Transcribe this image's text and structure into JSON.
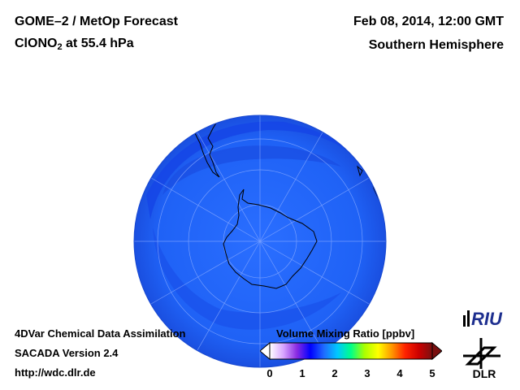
{
  "header": {
    "product": "GOME–2 / MetOp Forecast",
    "species_prefix": "ClONO",
    "species_sub": "2",
    "species_suffix": " at 55.4 hPa",
    "datetime": "Feb 08, 2014, 12:00 GMT",
    "region": "Southern Hemisphere"
  },
  "footer": {
    "line1": "4DVar Chemical Data Assimilation",
    "line2": "SACADA Version 2.4",
    "line3": "http://wdc.dlr.de"
  },
  "colorbar": {
    "title": "Volume Mixing Ratio [ppbv]",
    "ticks": [
      "0",
      "1",
      "2",
      "3",
      "4",
      "5"
    ],
    "range": [
      0,
      5
    ],
    "colors": [
      "#ffffff",
      "#d8a6ff",
      "#8a2be2",
      "#0000ff",
      "#1f6bff",
      "#00c8ff",
      "#00ff88",
      "#aaff00",
      "#ffff00",
      "#ff9900",
      "#ff2200",
      "#cc0000",
      "#7a1010"
    ]
  },
  "map": {
    "projection": "orthographic-south-pole",
    "field_color_main": "#1e64ff",
    "field_color_band": "#1244e0",
    "coastline_color": "#000000",
    "grid_color": "#7fa6ff"
  },
  "logos": {
    "riu": "RIU",
    "dlr": "DLR"
  }
}
